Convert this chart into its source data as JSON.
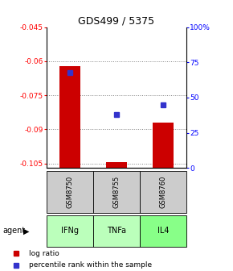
{
  "title": "GDS499 / 5375",
  "samples": [
    "GSM8750",
    "GSM8755",
    "GSM8760"
  ],
  "agents": [
    "IFNg",
    "TNFa",
    "IL4"
  ],
  "log_ratios": [
    -0.062,
    -0.1045,
    -0.087
  ],
  "percentile_ranks": [
    68,
    38,
    45
  ],
  "ylim_min": -0.107,
  "ylim_max": -0.045,
  "yticks": [
    -0.105,
    -0.09,
    -0.075,
    -0.06,
    -0.045
  ],
  "ytick_labels": [
    "-0.105",
    "-0.09",
    "-0.075",
    "-0.06",
    "-0.045"
  ],
  "right_yticks": [
    0,
    25,
    50,
    75,
    100
  ],
  "right_ytick_labels": [
    "0",
    "25",
    "50",
    "75",
    "100%"
  ],
  "bar_color": "#cc0000",
  "dot_color": "#3333cc",
  "agent_colors": [
    "#bbffbb",
    "#bbffbb",
    "#88ff88"
  ],
  "sample_box_color": "#cccccc",
  "legend_bar_label": "log ratio",
  "legend_dot_label": "percentile rank within the sample"
}
